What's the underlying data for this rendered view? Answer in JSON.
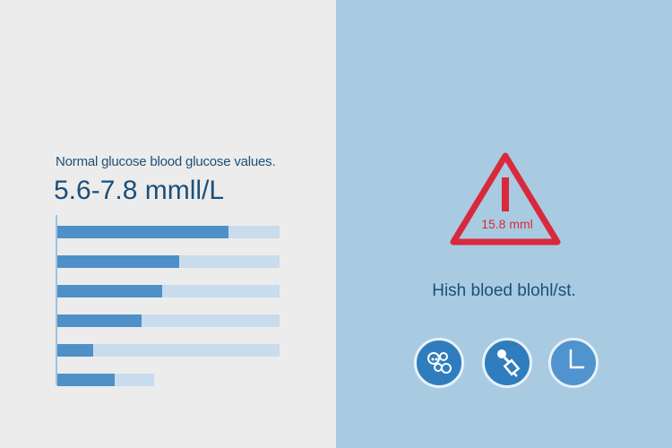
{
  "left_panel": {
    "subtitle": "Normal glucose blood glucose values.",
    "range": "5.6-7.8 mmll/L",
    "bars": [
      {
        "fill": 0.77
      },
      {
        "fill": 0.55
      },
      {
        "fill": 0.47
      },
      {
        "fill": 0.38
      },
      {
        "fill": 0.16
      },
      {
        "fill": 0.26
      }
    ]
  },
  "right_panel": {
    "warning_value": "15.8 mml",
    "status_text": "Hish bloed blohl/st.",
    "icons": [
      "molecule-icon",
      "syringe-icon",
      "clock-icon"
    ]
  },
  "colors": {
    "left_bg": "#ececec",
    "right_bg": "#a8cbe2",
    "bar_fill": "#4f90c8",
    "bar_track": "#c9dced",
    "warning_red": "#d9293d",
    "text_blue": "#1b4f7a"
  }
}
